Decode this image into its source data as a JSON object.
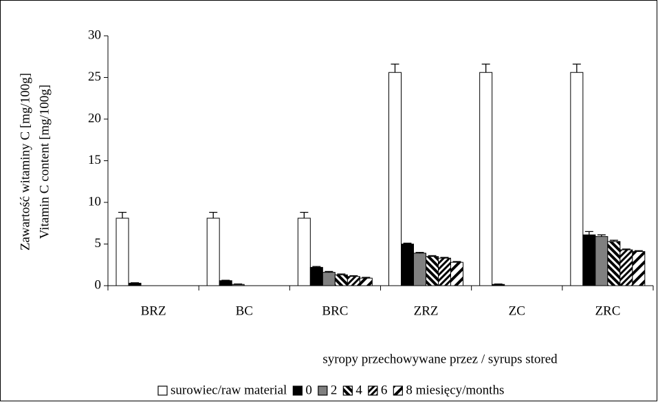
{
  "chart_data": {
    "type": "bar",
    "ylabel": [
      "Zawartość witaminy C [mg/100g]",
      "Vitamin C content [mg/100g]"
    ],
    "xlabel": "syropy przechowywane przez / syrups stored",
    "categories": [
      "BRZ",
      "BC",
      "BRC",
      "ZRZ",
      "ZC",
      "ZRC"
    ],
    "series": [
      {
        "name": "surowiec/raw material",
        "color": "#ffffff",
        "hatch": "none",
        "values": [
          8.1,
          8.1,
          8.1,
          25.6,
          25.6,
          25.6
        ],
        "errors": [
          0.7,
          0.7,
          0.7,
          1.0,
          1.0,
          1.0
        ]
      },
      {
        "name": "0",
        "color": "#000000",
        "hatch": "none",
        "values": [
          0.3,
          0.6,
          2.2,
          5.0,
          0.15,
          6.1
        ],
        "errors": [
          0.05,
          0.05,
          0.1,
          0.1,
          0.05,
          0.4
        ]
      },
      {
        "name": "2",
        "color": "#808080",
        "hatch": "none",
        "values": [
          0,
          0.15,
          1.6,
          3.9,
          0,
          5.9
        ],
        "errors": [
          0,
          0.05,
          0.1,
          0.1,
          0,
          0.2
        ]
      },
      {
        "name": "4",
        "color": "#000000",
        "hatch": "back",
        "values": [
          0,
          0,
          1.3,
          3.5,
          0,
          5.3
        ],
        "errors": [
          0,
          0,
          0.1,
          0.1,
          0,
          0.15
        ]
      },
      {
        "name": "6",
        "color": "#000000",
        "hatch": "fwd",
        "values": [
          0,
          0,
          1.1,
          3.3,
          0,
          4.3
        ],
        "errors": [
          0,
          0,
          0.1,
          0.1,
          0,
          0.1
        ]
      },
      {
        "name": "8 miesięcy/months",
        "color": "#000000",
        "hatch": "fwd-wide",
        "values": [
          0,
          0,
          0.9,
          2.8,
          0,
          4.1
        ],
        "errors": [
          0,
          0,
          0.1,
          0.1,
          0,
          0.1
        ]
      }
    ],
    "ylim": [
      0,
      30
    ],
    "yticks": [
      0,
      5,
      10,
      15,
      20,
      25,
      30
    ]
  }
}
